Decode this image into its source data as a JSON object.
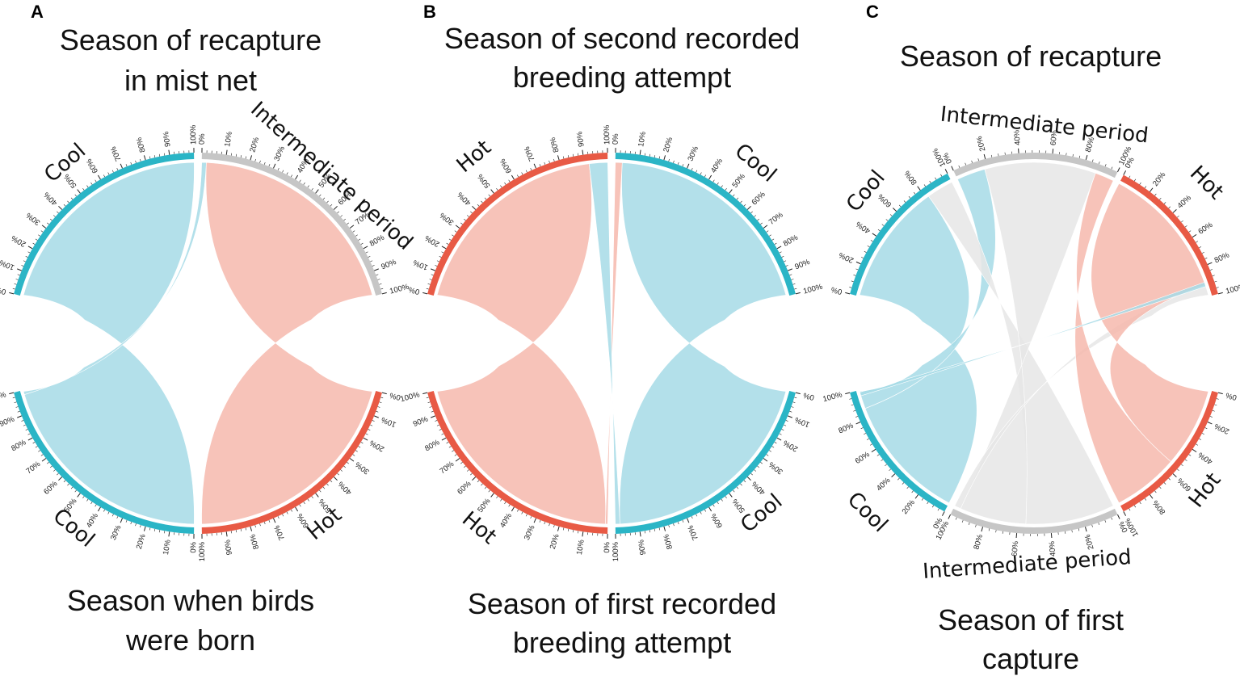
{
  "colors": {
    "Cool": "#2bb5c6",
    "Hot": "#e85a45",
    "Intermediate period": "#c6c6c6",
    "Cool_chord": "#a6dbe6",
    "Hot_chord": "#f6b8ad",
    "Intermediate_chord": "#e6e6e6"
  },
  "chart_data": [
    {
      "type": "chord",
      "panel": "A",
      "title_top": [
        "Season of recapture",
        "in mist net"
      ],
      "title_bottom": [
        "Season when birds",
        "were born"
      ],
      "top_segments": [
        "Cool",
        "Intermediate period"
      ],
      "bottom_segments": [
        "Cool",
        "Hot"
      ],
      "tick_labels": [
        "0%",
        "10%",
        "20%",
        "30%",
        "40%",
        "50%",
        "60%",
        "70%",
        "80%",
        "90%",
        "100%"
      ],
      "flows": [
        {
          "from": "Cool",
          "to": "Cool",
          "from_range": [
            0,
            0.98
          ],
          "to_range": [
            0,
            1.0
          ]
        },
        {
          "from": "Cool",
          "to": "Intermediate period",
          "from_range": [
            0.98,
            1.0
          ],
          "to_range": [
            0,
            0.02
          ]
        },
        {
          "from": "Hot",
          "to": "Intermediate period",
          "from_range": [
            0,
            1.0
          ],
          "to_range": [
            0.02,
            1.0
          ]
        }
      ]
    },
    {
      "type": "chord",
      "panel": "B",
      "title_top": [
        "Season of second recorded",
        "breeding attempt"
      ],
      "title_bottom": [
        "Season of first recorded",
        "breeding attempt"
      ],
      "top_segments": [
        "Hot",
        "Cool"
      ],
      "bottom_segments": [
        "Hot",
        "Cool"
      ],
      "tick_labels": [
        "0%",
        "10%",
        "20%",
        "30%",
        "40%",
        "50%",
        "60%",
        "70%",
        "80%",
        "90%",
        "100%"
      ],
      "flows": [
        {
          "from": "Hot",
          "to": "Hot",
          "from_range": [
            0.01,
            1.0
          ],
          "to_range": [
            0,
            0.92
          ]
        },
        {
          "from": "Hot",
          "to": "Cool",
          "from_range": [
            0,
            0.01
          ],
          "to_range": [
            0,
            0.03
          ]
        },
        {
          "from": "Cool",
          "to": "Hot",
          "from_range": [
            0.98,
            1.0
          ],
          "to_range": [
            0.92,
            1.0
          ]
        },
        {
          "from": "Cool",
          "to": "Cool",
          "from_range": [
            0,
            0.98
          ],
          "to_range": [
            0.03,
            1.0
          ]
        }
      ]
    },
    {
      "type": "chord",
      "panel": "C",
      "title_top": [
        "Season of recapture"
      ],
      "title_bottom": [
        "Season of first",
        "capture"
      ],
      "top_segments": [
        "Cool",
        "Intermediate period",
        "Hot"
      ],
      "bottom_segments": [
        "Cool",
        "Intermediate period",
        "Hot"
      ],
      "tick_labels": [
        "0%",
        "20%",
        "40%",
        "60%",
        "80%",
        "100%"
      ],
      "flows": [
        {
          "from": "Cool",
          "to": "Cool",
          "from_range": [
            0,
            0.87
          ],
          "to_range": [
            0,
            0.82
          ]
        },
        {
          "from": "Cool",
          "to": "Intermediate period",
          "from_range": [
            0.87,
            1.0
          ],
          "to_range": [
            0,
            0.18
          ]
        },
        {
          "from": "Intermediate period",
          "to": "Cool",
          "from_range": [
            0,
            0.55
          ],
          "to_range": [
            0.82,
            1.0
          ]
        },
        {
          "from": "Intermediate period",
          "to": "Intermediate period",
          "from_range": [
            0.55,
            0.96
          ],
          "to_range": [
            0.18,
            0.88
          ]
        },
        {
          "from": "Intermediate period",
          "to": "Hot",
          "from_range": [
            0.96,
            1.0
          ],
          "to_range": [
            0.92,
            1.0
          ]
        },
        {
          "from": "Hot",
          "to": "Intermediate period",
          "from_range": [
            0.55,
            1.0
          ],
          "to_range": [
            0.88,
            1.0
          ]
        },
        {
          "from": "Hot",
          "to": "Hot",
          "from_range": [
            0,
            0.55
          ],
          "to_range": [
            0,
            0.92
          ]
        },
        {
          "from": "Cool",
          "to": "Hot",
          "from_range": [
            0.96,
            0.985
          ],
          "to_range": [
            0.9,
            0.93
          ]
        }
      ]
    }
  ]
}
